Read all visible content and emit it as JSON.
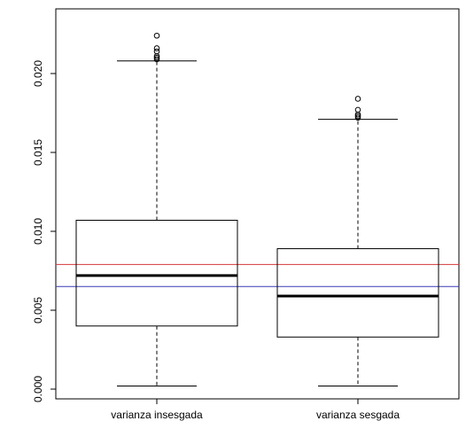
{
  "chart_data": {
    "type": "boxplot",
    "categories": [
      "varianza insesgada",
      "varianza sesgada"
    ],
    "boxes": [
      {
        "category": "varianza insesgada",
        "whisker_low": 0.0002,
        "q1": 0.004,
        "median": 0.0072,
        "q3": 0.0107,
        "whisker_high": 0.0208,
        "outliers": [
          0.0209,
          0.021,
          0.0211,
          0.0214,
          0.0216,
          0.0224
        ]
      },
      {
        "category": "varianza sesgada",
        "whisker_low": 0.0002,
        "q1": 0.0033,
        "median": 0.0059,
        "q3": 0.0089,
        "whisker_high": 0.0171,
        "outliers": [
          0.0172,
          0.0173,
          0.0174,
          0.0177,
          0.0184
        ]
      }
    ],
    "reference_lines": [
      {
        "value": 0.0079,
        "color": "#d23a3a"
      },
      {
        "value": 0.0065,
        "color": "#3a3ab4"
      }
    ],
    "ylim": [
      0.0,
      0.0232
    ],
    "yticks": [
      0.0,
      0.005,
      0.01,
      0.015,
      0.02
    ],
    "ytick_labels": [
      "0.000",
      "0.005",
      "0.010",
      "0.015",
      "0.020"
    ],
    "grid": false,
    "title": "",
    "xlabel": "",
    "ylabel": ""
  }
}
